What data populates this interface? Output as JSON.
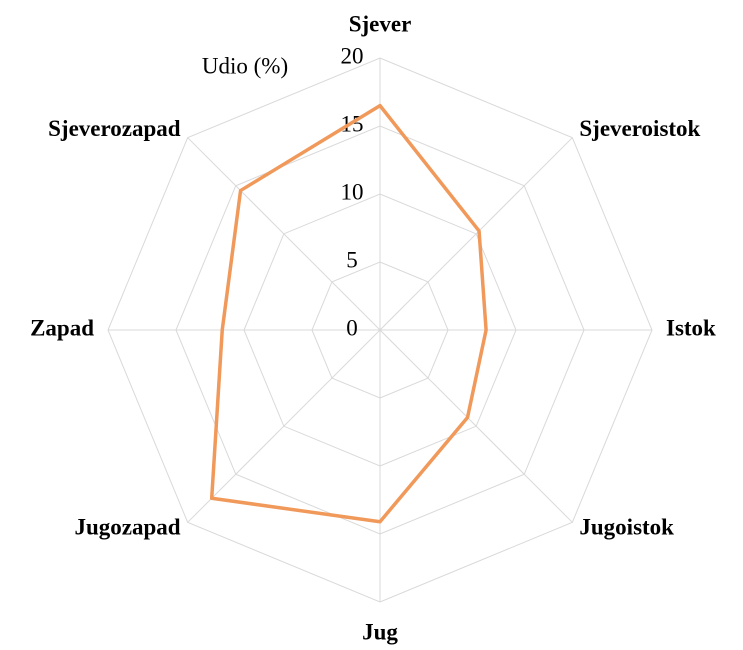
{
  "chart_data": {
    "type": "radar",
    "axis_label": "Udio (%)",
    "categories": [
      "Sjever",
      "Sjeveroistok",
      "Istok",
      "Jugoistok",
      "Jug",
      "Jugozapad",
      "Zapad",
      "Sjeverozapad"
    ],
    "values": [
      16.5,
      10.3,
      7.8,
      9.1,
      14.1,
      17.5,
      11.6,
      14.5
    ],
    "color": "#f0995a",
    "ylim": [
      0,
      20
    ],
    "yticks": [
      0,
      5,
      10,
      15,
      20
    ],
    "grid": true
  }
}
